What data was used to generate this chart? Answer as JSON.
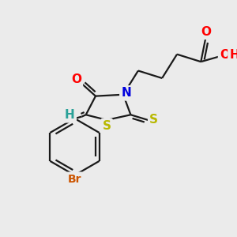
{
  "bg_color": "#ebebeb",
  "bond_color": "#1a1a1a",
  "figsize": [
    3.0,
    3.0
  ],
  "dpi": 100,
  "colors": {
    "O": "#ff0000",
    "N": "#0000dd",
    "S": "#b8b800",
    "Br": "#cc5500",
    "H_vinyl": "#2aa198",
    "C": "#1a1a1a"
  },
  "lw": 1.6
}
